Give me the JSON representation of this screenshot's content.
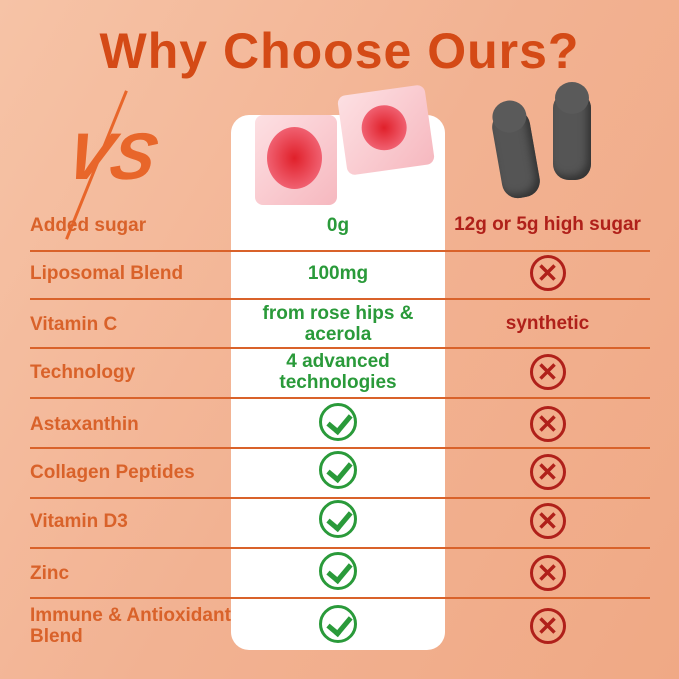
{
  "title": "Why Choose Ours?",
  "vs_label": "VS",
  "colors": {
    "title": "#d44a16",
    "label": "#d9622a",
    "ours": "#2a9a3a",
    "theirs": "#b0201a"
  },
  "rows": [
    {
      "label": "Added sugar",
      "ours": "0g",
      "theirs": "12g or 5g high sugar"
    },
    {
      "label": "Liposomal Blend",
      "ours": "100mg",
      "theirs_icon": "cross-icon"
    },
    {
      "label": "Vitamin C",
      "ours": "from rose hips & acerola",
      "theirs": "synthetic"
    },
    {
      "label": "Technology",
      "ours": "4 advanced technologies",
      "theirs_icon": "cross-icon"
    },
    {
      "label": "Astaxanthin",
      "ours_icon": "check-icon",
      "theirs_icon": "cross-icon"
    },
    {
      "label": "Collagen Peptides",
      "ours_icon": "check-icon",
      "theirs_icon": "cross-icon"
    },
    {
      "label": "Vitamin D3",
      "ours_icon": "check-icon",
      "theirs_icon": "cross-icon"
    },
    {
      "label": "Zinc",
      "ours_icon": "check-icon",
      "theirs_icon": "cross-icon"
    },
    {
      "label": "Immune & Antioxidant Blend",
      "ours_icon": "check-icon",
      "theirs_icon": "cross-icon"
    }
  ]
}
